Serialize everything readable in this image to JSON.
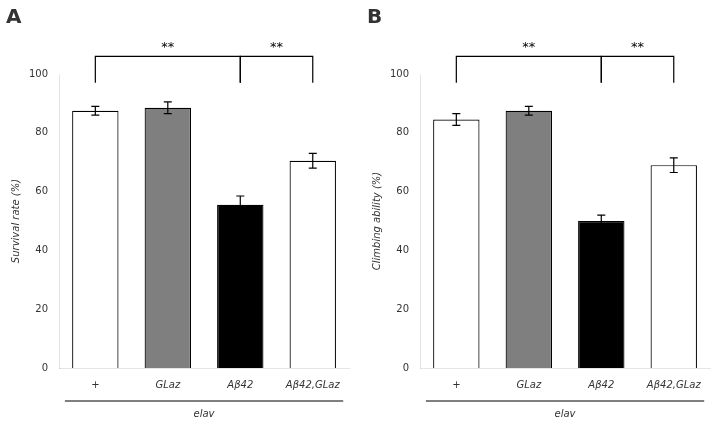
{
  "chart_data": [
    {
      "type": "bar",
      "title": "A",
      "ylabel": "Survival rate (%)",
      "xlabel": "elav",
      "categories": [
        "+",
        "GLaz",
        "Aβ42",
        "Aβ42,GLaz"
      ],
      "values": [
        87.5,
        88.5,
        55.5,
        70.5
      ],
      "errors": [
        1.5,
        2.0,
        3.0,
        2.5
      ],
      "colors": [
        "#ffffff",
        "#7f7f7f",
        "#000000",
        "#ffffff"
      ],
      "ylim": [
        0,
        100
      ],
      "yticks": [
        0,
        20,
        40,
        60,
        80,
        100
      ],
      "grid": false,
      "annotations": [
        {
          "from": "+",
          "to": "Aβ42",
          "label": "**"
        },
        {
          "from": "Aβ42",
          "to": "Aβ42,GLaz",
          "label": "**"
        }
      ]
    },
    {
      "type": "bar",
      "title": "B",
      "ylabel": "Climbing ability (%)",
      "xlabel": "elav",
      "categories": [
        "+",
        "GLaz",
        "Aβ42",
        "Aβ42,GLaz"
      ],
      "values": [
        84.5,
        87.5,
        50.0,
        69.0
      ],
      "errors": [
        2.0,
        1.5,
        2.0,
        2.5
      ],
      "colors": [
        "#ffffff",
        "#7f7f7f",
        "#000000",
        "#ffffff"
      ],
      "ylim": [
        0,
        100
      ],
      "yticks": [
        0,
        20,
        40,
        60,
        80,
        100
      ],
      "grid": false,
      "annotations": [
        {
          "from": "+",
          "to": "Aβ42",
          "label": "**"
        },
        {
          "from": "Aβ42",
          "to": "Aβ42,GLaz",
          "label": "**"
        }
      ]
    }
  ]
}
